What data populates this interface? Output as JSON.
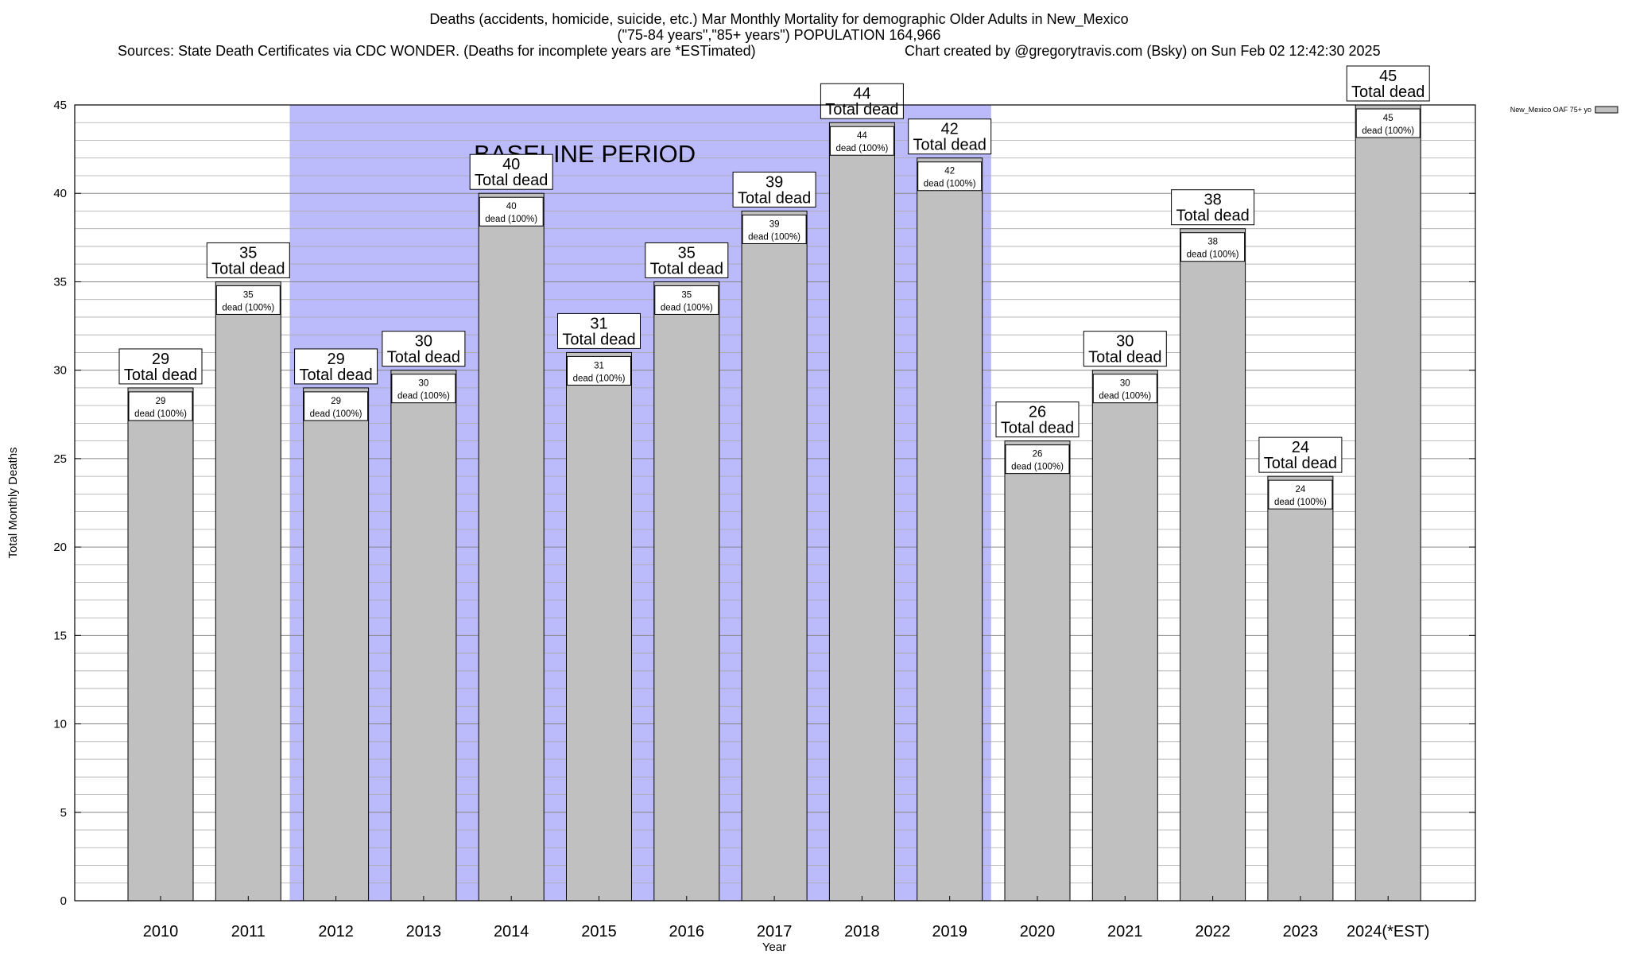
{
  "header": {
    "title_line1": "Deaths (accidents, homicide, suicide, etc.) Mar Monthly Mortality for demographic Older Adults in New_Mexico",
    "title_line2": "(\"75-84 years\",\"85+ years\") POPULATION 164,966",
    "sources": "Sources: State Death Certificates via CDC WONDER. (Deaths for incomplete years are *ESTimated)",
    "credit": "Chart created by @gregorytravis.com (Bsky) on Sun Feb 02 12:42:30 2025"
  },
  "colors": {
    "bar_fill": "#c0c0c0",
    "baseline_band": "#bbbbfb",
    "grid": "#aaaaaa"
  },
  "chart_data": {
    "type": "bar",
    "title": "Deaths (accidents, homicide, suicide, etc.) Mar Monthly Mortality for demographic Older Adults in New_Mexico",
    "subtitle": "(\"75-84 years\",\"85+ years\") POPULATION 164,966",
    "xlabel": "Year",
    "ylabel": "Total Monthly Deaths",
    "ylim": [
      0,
      45
    ],
    "yticks": [
      0,
      5,
      10,
      15,
      20,
      25,
      30,
      35,
      40,
      45
    ],
    "minor_grid_step": 1,
    "grid": true,
    "legend": {
      "label": "New_Mexico OAF 75+ yo",
      "placement": "top-right"
    },
    "categories": [
      "2010",
      "2011",
      "2012",
      "2013",
      "2014",
      "2015",
      "2016",
      "2017",
      "2018",
      "2019",
      "2020",
      "2021",
      "2022",
      "2023",
      "2024(*EST)"
    ],
    "series": [
      {
        "name": "New_Mexico OAF 75+ yo",
        "values": [
          29,
          35,
          29,
          30,
          40,
          31,
          35,
          39,
          44,
          42,
          26,
          30,
          38,
          24,
          45
        ]
      }
    ],
    "total_label_suffix": "Total dead",
    "inner_label_suffix": "dead (100%)",
    "annotations": [
      {
        "text": "BASELINE PERIOD",
        "start_category": "2012",
        "end_category": "2019"
      }
    ]
  }
}
